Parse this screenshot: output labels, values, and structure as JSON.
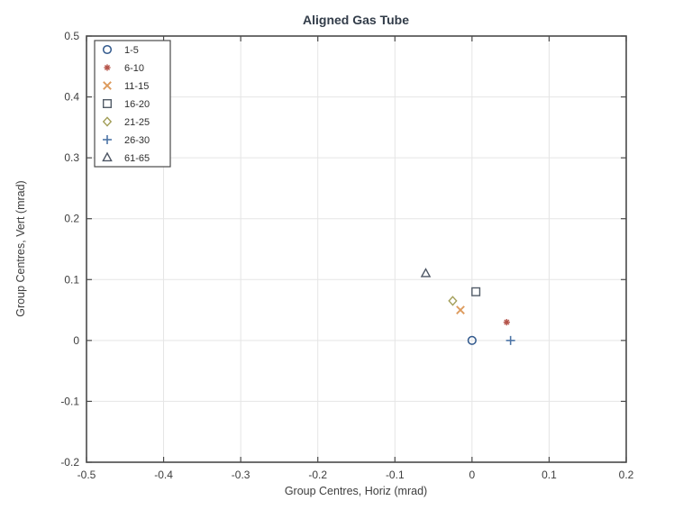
{
  "chart_data": {
    "type": "scatter",
    "title": "Aligned Gas Tube",
    "xlabel": "Group Centres, Horiz (mrad)",
    "ylabel": "Group Centres, Vert (mrad)",
    "xlim": [
      -0.5,
      0.2
    ],
    "ylim": [
      -0.2,
      0.5
    ],
    "xticks": [
      -0.5,
      -0.4,
      -0.3,
      -0.2,
      -0.1,
      0,
      0.1,
      0.2
    ],
    "xtick_labels": [
      "-0.5",
      "-0.4",
      "-0.3",
      "-0.2",
      "-0.1",
      "0",
      "0.1",
      "0.2"
    ],
    "yticks": [
      -0.2,
      -0.1,
      0,
      0.1,
      0.2,
      0.3,
      0.4,
      0.5
    ],
    "ytick_labels": [
      "-0.2",
      "-0.1",
      "0",
      "0.1",
      "0.2",
      "0.3",
      "0.4",
      "0.5"
    ],
    "grid": true,
    "legend_position": "top-left-inside",
    "colors": {
      "frame": "#4a4a4a",
      "grid": "#e5e5e5",
      "tick_text": "#3d3d3d",
      "legend_border": "#4a4a4a",
      "legend_background": "#ffffff"
    },
    "series": [
      {
        "name": "1-5",
        "marker": "circle",
        "color": "#30588c",
        "points": [
          [
            0.0,
            0.0
          ]
        ]
      },
      {
        "name": "6-10",
        "marker": "asterisk",
        "color": "#b5544a",
        "points": [
          [
            0.045,
            0.03
          ]
        ]
      },
      {
        "name": "11-15",
        "marker": "x",
        "color": "#dd9a5c",
        "points": [
          [
            -0.015,
            0.05
          ]
        ]
      },
      {
        "name": "16-20",
        "marker": "square",
        "color": "#525c68",
        "points": [
          [
            0.005,
            0.08
          ]
        ]
      },
      {
        "name": "21-25",
        "marker": "diamond",
        "color": "#a29e58",
        "points": [
          [
            -0.025,
            0.065
          ]
        ]
      },
      {
        "name": "26-30",
        "marker": "plus",
        "color": "#4c74a6",
        "points": [
          [
            0.05,
            0.0
          ]
        ]
      },
      {
        "name": "61-65",
        "marker": "triangle",
        "color": "#4d5664",
        "points": [
          [
            -0.06,
            0.11
          ]
        ]
      }
    ]
  }
}
